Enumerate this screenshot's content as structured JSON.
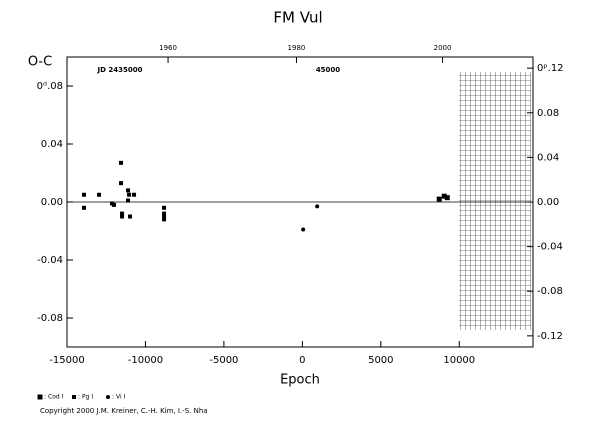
{
  "chart_data": {
    "type": "scatter",
    "title": "FM Vul",
    "ylabel": "O-C",
    "xlabel": "Epoch",
    "xlim": [
      -15000,
      14700
    ],
    "ylim": [
      -0.1,
      0.1
    ],
    "y2lim": [
      -0.13,
      0.13
    ],
    "xticks": [
      -15000,
      -10000,
      -5000,
      0,
      5000,
      10000
    ],
    "yticks": [
      -0.08,
      -0.04,
      {
        "value": 0,
        "label": "0.00"
      },
      0.04,
      {
        "value": 0.08,
        "label": "0ᵈ.08"
      }
    ],
    "y2ticks": [
      -0.12,
      -0.08,
      -0.04,
      {
        "value": 0,
        "label": "0.00"
      },
      0.04,
      0.08,
      {
        "value": 0.12,
        "label": "0ᵖ.12"
      }
    ],
    "x2ticks": [
      {
        "value": -8560,
        "label": "1960"
      },
      {
        "value": -375,
        "label": "1980"
      },
      {
        "value": 8936,
        "label": "2000"
      }
    ],
    "annotations": [
      "JD 2435000",
      "45000"
    ],
    "series": [
      {
        "name": "Cod I",
        "marker": "square",
        "color": "#000000",
        "x": [
          8724,
          9043,
          9235
        ],
        "values": [
          0.002,
          0.004,
          0.003
        ]
      },
      {
        "name": "Pg I",
        "marker": "small-square",
        "color": "#000000",
        "x": [
          -13916,
          -13916,
          -12959,
          -12130,
          -12003,
          -11556,
          -11556,
          -11492,
          -11492,
          -11110,
          -11046,
          -10982,
          -11110,
          -10727,
          -8814,
          -8814,
          -8814,
          -8814
        ],
        "values": [
          0.005,
          -0.004,
          0.005,
          -0.001,
          -0.002,
          0.027,
          0.013,
          -0.008,
          -0.01,
          0.008,
          0.005,
          -0.01,
          0.001,
          0.005,
          -0.004,
          -0.008,
          -0.01,
          -0.012
        ]
      },
      {
        "name": "Vi I",
        "marker": "circle",
        "color": "#000000",
        "x": [
          51,
          944
        ],
        "values": [
          -0.019,
          -0.003
        ]
      }
    ],
    "footer": "Copyright 2000 J.M. Kreiner, C.-H. Kim, I.-S. Nha"
  }
}
